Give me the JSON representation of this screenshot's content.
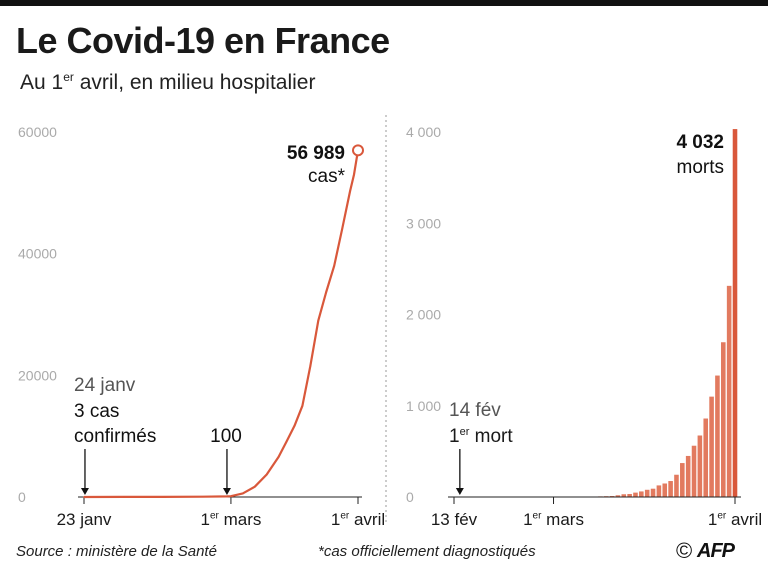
{
  "title": "Le Covid-19 en France",
  "subtitle": {
    "prefix": "Au 1",
    "sup": "er",
    "rest": " avril, en milieu hospitalier"
  },
  "footer": {
    "source": "Source : ministère de la Santé",
    "note": "*cas officiellement diagnostiqués",
    "credit_symbol": "©",
    "agency": "AFP"
  },
  "colors": {
    "series": "#d9583b",
    "bar": "#e27a5f",
    "bar_last": "#d9583b",
    "axis_text": "#aaaaaa",
    "divider": "#999999"
  },
  "chart_data": [
    {
      "type": "line",
      "name": "cases",
      "ylim": [
        0,
        60000
      ],
      "yticks": [
        0,
        20000,
        40000,
        60000
      ],
      "ytick_labels": [
        "0",
        "20000",
        "40000",
        "60000"
      ],
      "x_domain": [
        0,
        69
      ],
      "xtick_days": [
        0,
        37,
        69
      ],
      "xtick_labels": [
        {
          "pre": "23 janv",
          "sup": "",
          "post": ""
        },
        {
          "pre": "1",
          "sup": "er",
          "post": " mars"
        },
        {
          "pre": "1",
          "sup": "er",
          "post": " avril"
        }
      ],
      "x": [
        0,
        10,
        20,
        30,
        36,
        37,
        40,
        43,
        46,
        49,
        51,
        53,
        55,
        57,
        59,
        61,
        63,
        65,
        67,
        68,
        69
      ],
      "y": [
        3,
        12,
        12,
        57,
        100,
        130,
        600,
        1700,
        3700,
        6600,
        9100,
        11700,
        15000,
        21500,
        29000,
        33700,
        38000,
        44000,
        50300,
        53000,
        56989
      ],
      "annotations": {
        "start": {
          "date": "24 janv",
          "line1": "3 cas",
          "line2": "confirmés",
          "x": 1,
          "y": 3
        },
        "hundred": {
          "label": "100",
          "x": 36,
          "y": 100
        },
        "end": {
          "value": "56 989",
          "unit": "cas*",
          "x": 69,
          "y": 56989
        }
      }
    },
    {
      "type": "bar",
      "name": "deaths",
      "ylim": [
        0,
        4000
      ],
      "yticks": [
        0,
        1000,
        2000,
        3000,
        4000
      ],
      "ytick_labels": [
        "0",
        "1 000",
        "2 000",
        "3 000",
        "4 000"
      ],
      "x_domain": [
        0,
        48
      ],
      "xtick_days": [
        0,
        17,
        48
      ],
      "xtick_labels": [
        {
          "pre": "13 fév",
          "sup": "",
          "post": ""
        },
        {
          "pre": "1",
          "sup": "er",
          "post": " mars"
        },
        {
          "pre": "1",
          "sup": "er",
          "post": " avril"
        }
      ],
      "x": [
        21,
        22,
        23,
        24,
        25,
        26,
        27,
        28,
        29,
        30,
        31,
        32,
        33,
        34,
        35,
        36,
        37,
        38,
        39,
        40,
        41,
        42,
        43,
        44,
        45,
        46,
        47,
        48
      ],
      "values": [
        2,
        3,
        3,
        4,
        7,
        9,
        11,
        19,
        30,
        33,
        48,
        61,
        79,
        91,
        127,
        148,
        175,
        244,
        372,
        450,
        562,
        674,
        860,
        1100,
        1331,
        1696,
        2314,
        4032
      ],
      "annotations": {
        "first": {
          "date": "14 fév",
          "pre": "1",
          "sup": "er",
          "post": " mort",
          "x": 1
        },
        "end": {
          "value": "4 032",
          "unit": "morts"
        }
      }
    }
  ]
}
